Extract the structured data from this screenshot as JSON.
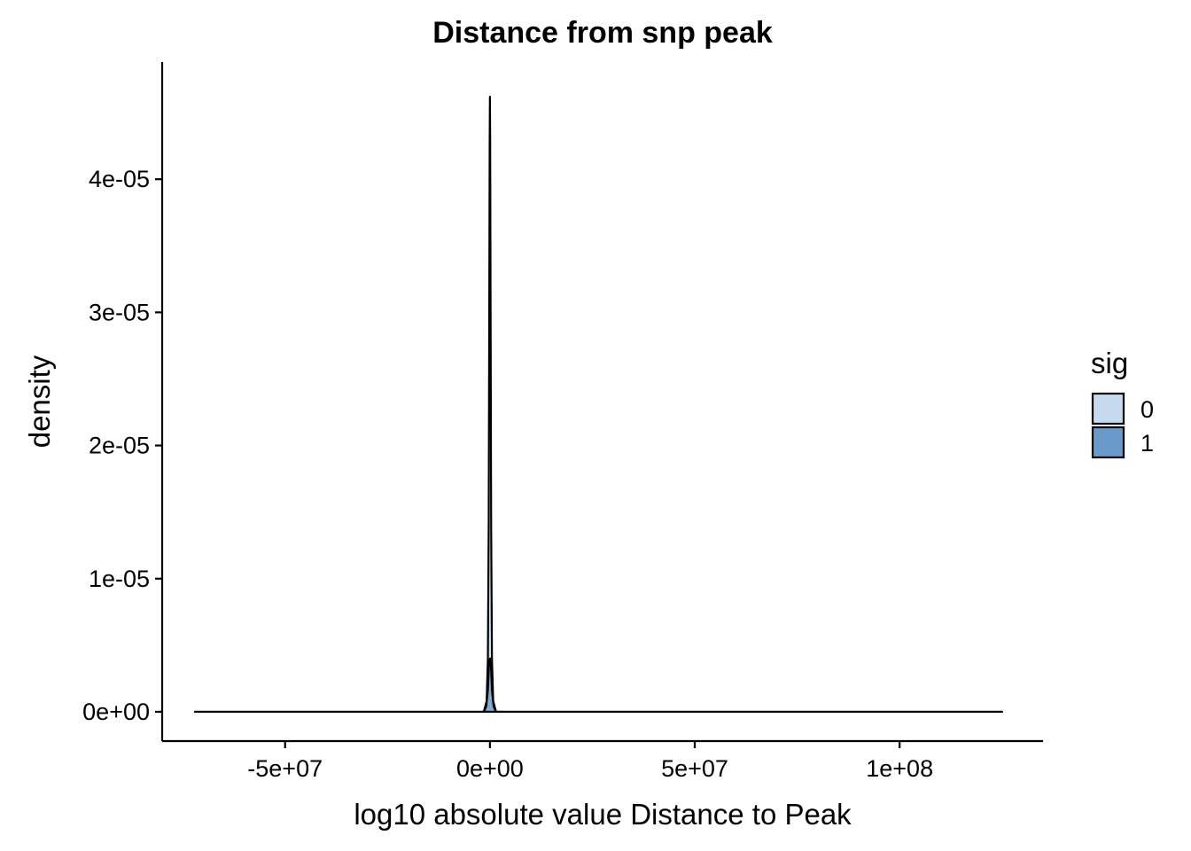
{
  "chart_data": {
    "type": "area",
    "title": "Distance from snp peak",
    "xlabel": "log10 absolute value Distance to Peak",
    "ylabel": "density",
    "x_ticks": [
      -50000000,
      0,
      50000000,
      100000000
    ],
    "x_tick_labels": [
      "-5e+07",
      "0e+00",
      "5e+07",
      "1e+08"
    ],
    "y_ticks": [
      0,
      1e-05,
      2e-05,
      3e-05,
      4e-05
    ],
    "y_tick_labels": [
      "0e+00",
      "1e-05",
      "2e-05",
      "3e-05",
      "4e-05"
    ],
    "xlim": [
      -80000000,
      135000000
    ],
    "ylim": [
      -2.2e-06,
      4.88e-05
    ],
    "grid": false,
    "legend": {
      "title": "sig",
      "position": "right",
      "entries": [
        {
          "label": "0",
          "color": "#c6dbef"
        },
        {
          "label": "1",
          "color": "#6a9ac8"
        }
      ]
    },
    "series": [
      {
        "name": "0",
        "color": "#c6dbef",
        "opacity": 0.9,
        "x": [
          -72000000,
          -1500000,
          -800000,
          -500000,
          -300000,
          -150000,
          -60000,
          0,
          60000,
          150000,
          300000,
          500000,
          800000,
          1500000,
          125000000
        ],
        "y": [
          0,
          0,
          8e-07,
          4e-06,
          1.4e-05,
          3.2e-05,
          4.3e-05,
          4.62e-05,
          4.3e-05,
          3.2e-05,
          1.4e-05,
          4e-06,
          8e-07,
          0,
          0
        ]
      },
      {
        "name": "1",
        "color": "#6a9ac8",
        "opacity": 0.75,
        "x": [
          -72000000,
          -1500000,
          -900000,
          -500000,
          -250000,
          0,
          250000,
          500000,
          900000,
          1500000,
          125000000
        ],
        "y": [
          0,
          0,
          4e-07,
          1.6e-06,
          3.4e-06,
          4e-06,
          3.4e-06,
          1.6e-06,
          4e-07,
          0,
          0
        ]
      }
    ]
  }
}
